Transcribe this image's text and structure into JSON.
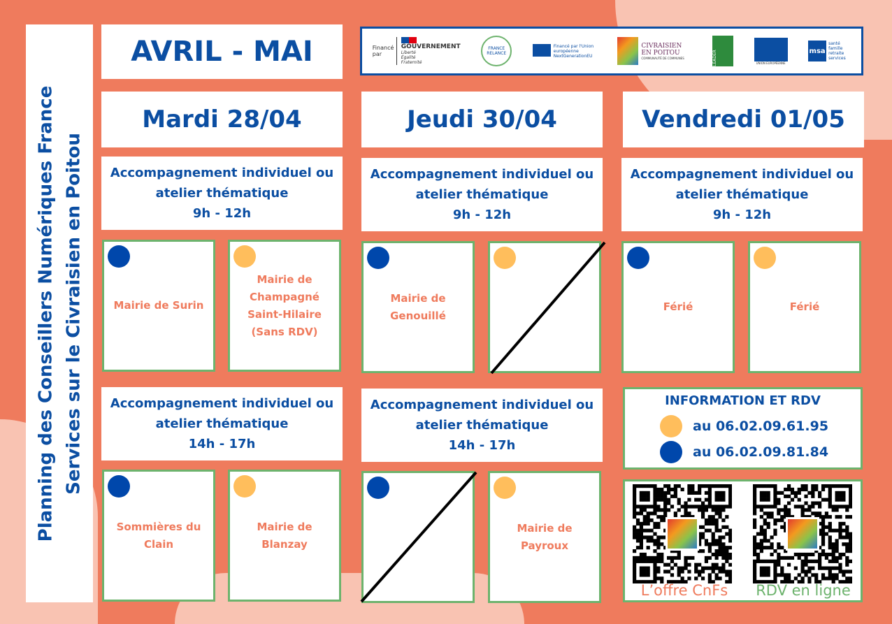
{
  "title": {
    "line1": "Planning des Conseillers Numériques France",
    "line2": "Services sur le Civraisien en Poitou"
  },
  "period": "AVRIL - MAI",
  "logos": {
    "finance": "Financé par",
    "gouv": "GOUVERNEMENT",
    "gouv_motto": "Liberté Égalité Fraternité",
    "relance": "FRANCE RELANCE",
    "eu_next": "Financé par l'Union européenne NextGenerationEU",
    "civraisien": "CIVRAISIEN EN POITOU",
    "civraisien_sub": "COMMUNAUTÉ DE COMMUNES",
    "leader": "LEADER",
    "ue": "UNION EUROPÉENNE",
    "msa": "msa",
    "msa_sub": "santé famille retraite services"
  },
  "colors": {
    "blue": "#0047ab",
    "yellow": "#ffbe5c",
    "accent": "#ef7b5d",
    "green": "#6db36d"
  },
  "days": [
    {
      "label": "Mardi 28/04",
      "morning": {
        "title": "Accompagnement individuel ou",
        "title2": "atelier thématique",
        "hours": "9h - 12h",
        "blue": "Mairie de Surin",
        "yellow": "Mairie de Champagné Saint-Hilaire (Sans RDV)"
      },
      "afternoon": {
        "title": "Accompagnement individuel ou",
        "title2": "atelier thématique",
        "hours": "14h - 17h",
        "blue": "Sommières du Clain",
        "yellow": "Mairie de Blanzay"
      }
    },
    {
      "label": "Jeudi 30/04",
      "morning": {
        "title": "Accompagnement individuel ou",
        "title2": "atelier thématique",
        "hours": "9h - 12h",
        "blue": "Mairie de Genouillé",
        "yellow": ""
      },
      "afternoon": {
        "title": "Accompagnement individuel ou",
        "title2": "atelier thématique",
        "hours": "14h - 17h",
        "blue": "",
        "yellow": "Mairie de Payroux"
      }
    },
    {
      "label": "Vendredi 01/05",
      "morning": {
        "title": "Accompagnement individuel ou",
        "title2": "atelier thématique",
        "hours": "9h - 12h",
        "blue": "Férié",
        "yellow": "Férié"
      }
    }
  ],
  "info": {
    "title": "INFORMATION ET RDV",
    "yellow_phone": "au 06.02.09.61.95",
    "blue_phone": "au 06.02.09.81.84"
  },
  "qr": {
    "left_label": "L’offre CnFs",
    "right_label": "RDV en ligne"
  }
}
